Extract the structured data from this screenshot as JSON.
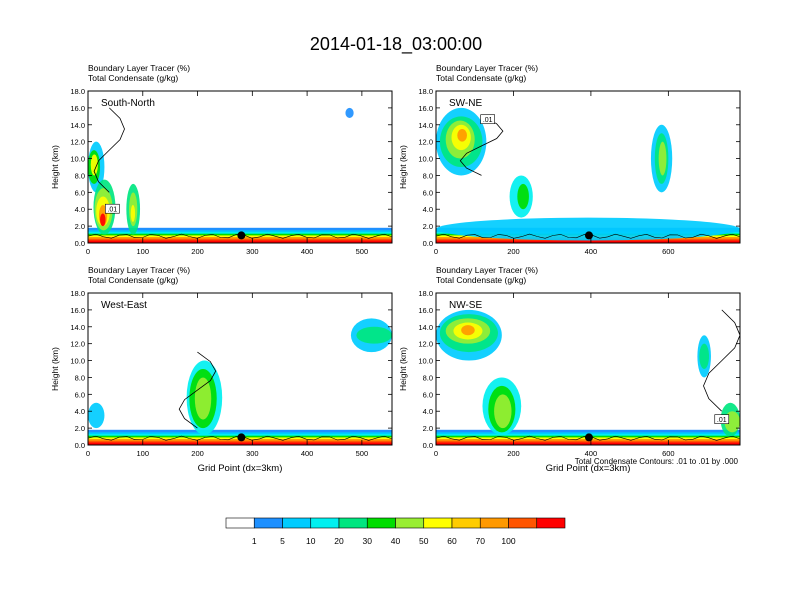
{
  "title": "2014-01-18_03:00:00",
  "chart_data": [
    {
      "type": "heatmap",
      "panel": "South-North",
      "label_line1": "Boundary Layer Tracer   (%)",
      "label_line2": "Total Condensate   (g/kg)",
      "ylabel": "Height (km)",
      "xlabel": "",
      "xlim": [
        0,
        555
      ],
      "ylim": [
        0,
        18
      ],
      "xticks": [
        "0",
        "100",
        "200",
        "300",
        "400",
        "500"
      ],
      "yticks": [
        "0.0",
        "2.0",
        "4.0",
        "6.0",
        "8.0",
        "10.0",
        "12.0",
        "14.0",
        "16.0",
        "18.0"
      ],
      "contour_labels": [
        ".01"
      ],
      "marker_x": 280
    },
    {
      "type": "heatmap",
      "panel": "SW-NE",
      "label_line1": "Boundary Layer Tracer   (%)",
      "label_line2": "Total Condensate   (g/kg)",
      "ylabel": "Height (km)",
      "xlabel": "",
      "xlim": [
        0,
        785
      ],
      "ylim": [
        0,
        18
      ],
      "xticks": [
        "0",
        "200",
        "400",
        "600"
      ],
      "yticks": [
        "0.0",
        "2.0",
        "4.0",
        "6.0",
        "8.0",
        "10.0",
        "12.0",
        "14.0",
        "16.0",
        "18.0"
      ],
      "contour_labels": [
        ".01"
      ],
      "marker_x": 395
    },
    {
      "type": "heatmap",
      "panel": "West-East",
      "label_line1": "Boundary Layer Tracer   (%)",
      "label_line2": "Total Condensate   (g/kg)",
      "ylabel": "Height (km)",
      "xlabel": "Grid Point (dx=3km)",
      "xlim": [
        0,
        555
      ],
      "ylim": [
        0,
        18
      ],
      "xticks": [
        "0",
        "100",
        "200",
        "300",
        "400",
        "500"
      ],
      "yticks": [
        "0.0",
        "2.0",
        "4.0",
        "6.0",
        "8.0",
        "10.0",
        "12.0",
        "14.0",
        "16.0",
        "18.0"
      ],
      "contour_labels": [],
      "marker_x": 280
    },
    {
      "type": "heatmap",
      "panel": "NW-SE",
      "label_line1": "Boundary Layer Tracer   (%)",
      "label_line2": "Total Condensate   (g/kg)",
      "ylabel": "Height (km)",
      "xlabel": "Grid Point (dx=3km)",
      "xlim": [
        0,
        785
      ],
      "ylim": [
        0,
        18
      ],
      "xticks": [
        "0",
        "200",
        "400",
        "600"
      ],
      "yticks": [
        "0.0",
        "2.0",
        "4.0",
        "6.0",
        "8.0",
        "10.0",
        "12.0",
        "14.0",
        "16.0",
        "18.0"
      ],
      "contour_labels": [
        ".01"
      ],
      "marker_x": 395
    }
  ],
  "contour_note": "Total Condensate Contours: .01 to .01 by .000",
  "colorbar": {
    "labels": [
      "1",
      "5",
      "10",
      "20",
      "30",
      "40",
      "50",
      "60",
      "70",
      "100"
    ],
    "colors": [
      "#ffffff",
      "#1e90ff",
      "#00ccff",
      "#00f0f0",
      "#00e680",
      "#00dd00",
      "#99ee33",
      "#ffff00",
      "#ffcc00",
      "#ff9900",
      "#ff5500",
      "#ff0000"
    ]
  },
  "colors": {
    "yellow": "#ffff00",
    "orange": "#ff9900",
    "red": "#ff0000",
    "green": "#00dd00",
    "contour": "#000000",
    "marker": "#000000"
  }
}
